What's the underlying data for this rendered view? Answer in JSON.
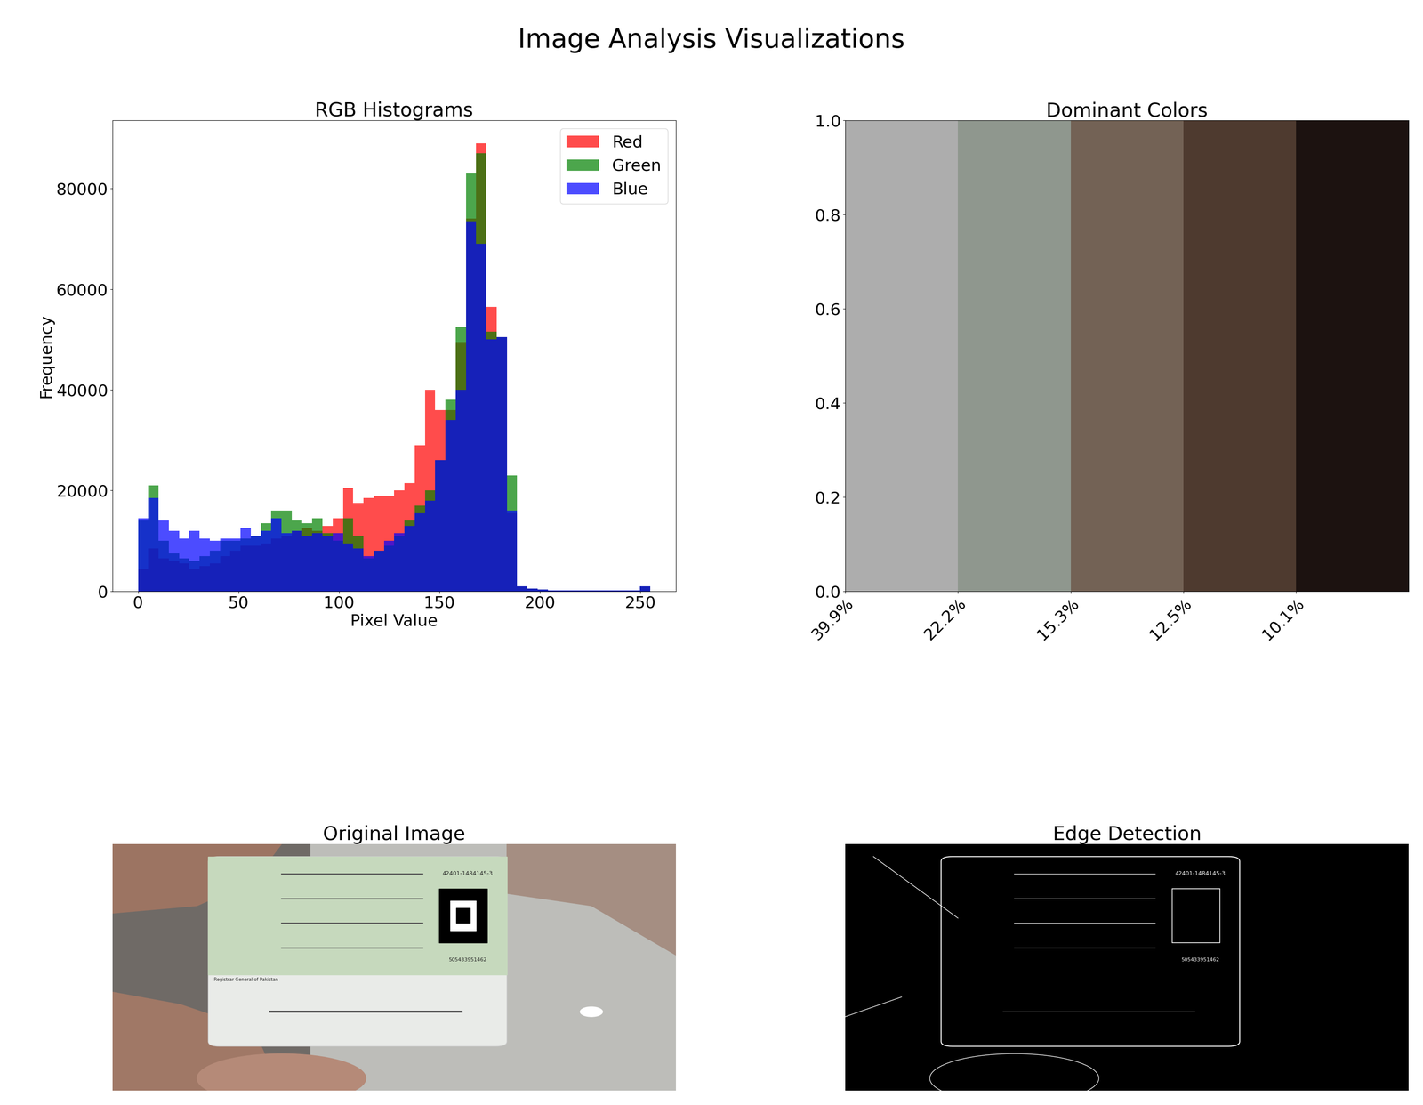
{
  "title": "Image Analysis Visualizations",
  "chart_data": [
    {
      "type": "histogram",
      "title": "RGB Histograms",
      "x_label": "Pixel Value",
      "y_label": "Frequency",
      "bins": [
        0,
        5.1,
        10.2,
        15.3,
        20.4,
        25.5,
        30.6,
        35.7,
        40.8,
        45.9,
        51,
        56.1,
        61.2,
        66.3,
        71.4,
        76.5,
        81.6,
        86.7,
        91.8,
        96.9,
        102,
        107.1,
        112.2,
        117.3,
        122.4,
        127.5,
        132.6,
        137.7,
        142.8,
        147.9,
        153,
        158.1,
        163.2,
        168.3,
        173.4,
        178.5,
        183.6,
        188.7,
        193.8,
        198.9,
        204,
        209.1,
        214.2,
        219.3,
        224.4,
        229.5,
        234.6,
        239.7,
        244.8,
        249.9,
        255
      ],
      "series": [
        {
          "name": "Red",
          "color": "red",
          "values": [
            4500,
            8500,
            6500,
            6000,
            5500,
            4500,
            5000,
            5500,
            7000,
            8000,
            9000,
            9000,
            9500,
            10500,
            11000,
            12000,
            12500,
            12000,
            13000,
            14500,
            20500,
            17500,
            18500,
            19000,
            19000,
            20000,
            21500,
            29000,
            40000,
            36000,
            36000,
            49500,
            74000,
            89000,
            56500,
            50500,
            15500,
            1000,
            500,
            300,
            200,
            200,
            200,
            200,
            200,
            200,
            200,
            200,
            200,
            1000
          ]
        },
        {
          "name": "Green",
          "color": "green",
          "values": [
            14000,
            21000,
            10000,
            7500,
            6500,
            6000,
            7000,
            8000,
            10000,
            10000,
            10500,
            11000,
            13500,
            16000,
            16000,
            14000,
            13500,
            14500,
            11500,
            10000,
            14500,
            11000,
            6500,
            8000,
            9000,
            11000,
            14000,
            17000,
            20000,
            26000,
            38000,
            52500,
            83000,
            87000,
            51500,
            50500,
            23000,
            1000,
            500,
            300,
            200,
            200,
            200,
            200,
            200,
            200,
            200,
            200,
            200,
            1000
          ]
        },
        {
          "name": "Blue",
          "color": "blue",
          "values": [
            14500,
            18500,
            14000,
            12000,
            10500,
            12000,
            10500,
            10000,
            10500,
            10500,
            12500,
            11000,
            12000,
            14500,
            11500,
            12000,
            11000,
            11500,
            11000,
            11500,
            9500,
            8500,
            7000,
            8000,
            10000,
            11500,
            13000,
            15500,
            18000,
            26000,
            34000,
            40000,
            73500,
            69000,
            50000,
            50500,
            16000,
            1000,
            500,
            300,
            200,
            200,
            200,
            200,
            200,
            200,
            200,
            200,
            200,
            1000
          ]
        }
      ],
      "xlim": [
        -12.75,
        267.75
      ],
      "xticks": [
        0,
        50,
        100,
        150,
        200,
        250
      ],
      "ylim": [
        0,
        93500
      ],
      "yticks": [
        0,
        20000,
        40000,
        60000,
        80000
      ],
      "legend": "upper right"
    },
    {
      "type": "bar",
      "title": "Dominant Colors",
      "categories": [
        "39.9%",
        "22.2%",
        "15.3%",
        "12.5%",
        "10.1%"
      ],
      "values": [
        1,
        1,
        1,
        1,
        1
      ],
      "colors": [
        "#adadad",
        "#8f978e",
        "#736255",
        "#4e3a2f",
        "#1c1210"
      ],
      "ylim": [
        0,
        1
      ],
      "yticks": [
        {
          "value": 0,
          "label": "0.0"
        },
        0.2,
        0.4,
        0.6,
        0.8,
        {
          "value": 1,
          "label": "1.0"
        }
      ]
    }
  ],
  "images": [
    {
      "title": "Original Image",
      "texts": [
        "42401-1484145-3",
        "505433951462",
        "Registrar General of Pakistan"
      ]
    },
    {
      "title": "Edge Detection",
      "texts": [
        "42401-1484145-3",
        "505433951462"
      ]
    }
  ]
}
